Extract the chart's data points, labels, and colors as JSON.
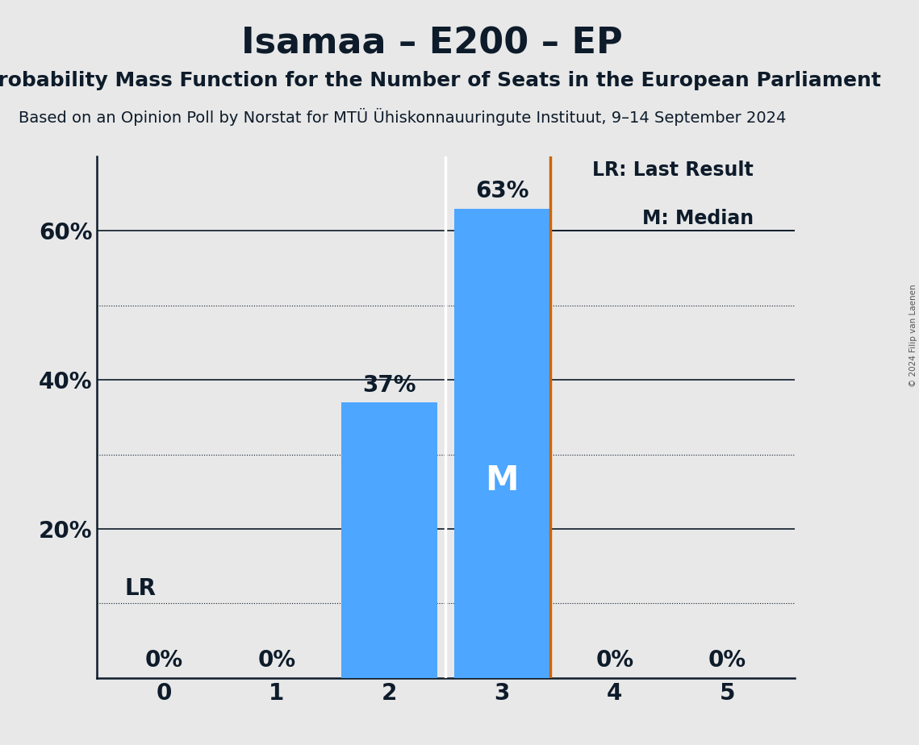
{
  "title": "Isamaa – E200 – EP",
  "subtitle": "Probability Mass Function for the Number of Seats in the European Parliament",
  "subsubtitle": "Based on an Opinion Poll by Norstat for MTÜ Ühiskonnauuringute Instituut, 9–14 September 2024",
  "copyright": "© 2024 Filip van Laenen",
  "seats": [
    0,
    1,
    2,
    3,
    4,
    5
  ],
  "probabilities": [
    0.0,
    0.0,
    0.37,
    0.63,
    0.0,
    0.0
  ],
  "bar_color": "#4da6ff",
  "bar_labels": [
    "0%",
    "0%",
    "37%",
    "63%",
    "0%",
    "0%"
  ],
  "last_result": 3,
  "median": 3,
  "lr_line_color": "#cc6600",
  "background_color": "#e8e8e8",
  "ylim": [
    0,
    0.7
  ],
  "yticks": [
    0.0,
    0.1,
    0.2,
    0.3,
    0.4,
    0.5,
    0.6
  ],
  "ytick_labels": [
    "",
    "",
    "20%",
    "",
    "40%",
    "",
    "60%"
  ],
  "solid_yticks": [
    0.2,
    0.4,
    0.6
  ],
  "dotted_yticks": [
    0.1,
    0.3,
    0.5
  ],
  "title_fontsize": 32,
  "subtitle_fontsize": 18,
  "subsubtitle_fontsize": 14,
  "axis_fontsize": 20,
  "label_fontsize": 20,
  "median_label": "M",
  "lr_label": "LR",
  "legend_lr": "LR: Last Result",
  "legend_m": "M: Median",
  "bar_width": 0.85
}
